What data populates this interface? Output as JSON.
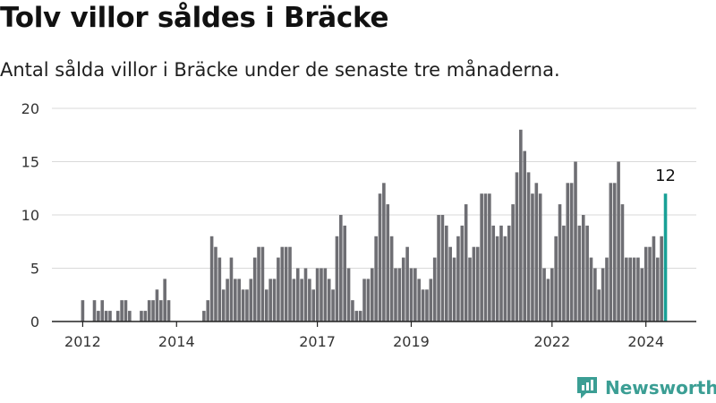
{
  "header": {
    "title": "Tolv villor såldes i Bräcke",
    "subtitle": "Antal sålda villor i Bräcke under de senaste tre månaderna."
  },
  "brand": {
    "name": "Newsworthy",
    "color": "#3b9e94"
  },
  "colors": {
    "bar": "#6e6e73",
    "highlight": "#18a096",
    "grid": "#d9d9d9",
    "axis": "#222222"
  },
  "chart_data": {
    "type": "bar",
    "title": "Tolv villor såldes i Bräcke",
    "subtitle": "Antal sålda villor i Bräcke under de senaste tre månaderna.",
    "xlabel": "",
    "ylabel": "",
    "ylim": [
      0,
      20
    ],
    "yticks": [
      0,
      5,
      10,
      15,
      20
    ],
    "grid": true,
    "x_ticks": [
      {
        "label": "2012",
        "index": 0
      },
      {
        "label": "2014",
        "index": 24
      },
      {
        "label": "2017",
        "index": 60
      },
      {
        "label": "2019",
        "index": 84
      },
      {
        "label": "2022",
        "index": 120
      },
      {
        "label": "2024",
        "index": 144
      }
    ],
    "start": "2012-01",
    "interval": "month",
    "values": [
      2,
      0,
      0,
      2,
      1,
      2,
      1,
      1,
      0,
      1,
      2,
      2,
      1,
      0,
      0,
      1,
      1,
      2,
      2,
      3,
      2,
      4,
      2,
      0,
      0,
      0,
      0,
      0,
      0,
      0,
      0,
      1,
      2,
      8,
      7,
      6,
      3,
      4,
      6,
      4,
      4,
      3,
      3,
      4,
      6,
      7,
      7,
      3,
      4,
      4,
      6,
      7,
      7,
      7,
      4,
      5,
      4,
      5,
      4,
      3,
      5,
      5,
      5,
      4,
      3,
      8,
      10,
      9,
      5,
      2,
      1,
      1,
      4,
      4,
      5,
      8,
      12,
      13,
      11,
      8,
      5,
      5,
      6,
      7,
      5,
      5,
      4,
      3,
      3,
      4,
      6,
      10,
      10,
      9,
      7,
      6,
      8,
      9,
      11,
      6,
      7,
      7,
      12,
      12,
      12,
      9,
      8,
      9,
      8,
      9,
      11,
      14,
      18,
      16,
      14,
      12,
      13,
      12,
      5,
      4,
      5,
      8,
      11,
      9,
      13,
      13,
      15,
      9,
      10,
      9,
      6,
      5,
      3,
      5,
      6,
      13,
      13,
      15,
      11,
      6,
      6,
      6,
      6,
      5,
      7,
      7,
      8,
      6,
      8,
      12
    ],
    "highlight": {
      "index": 149,
      "value": 12,
      "label": "12"
    }
  }
}
